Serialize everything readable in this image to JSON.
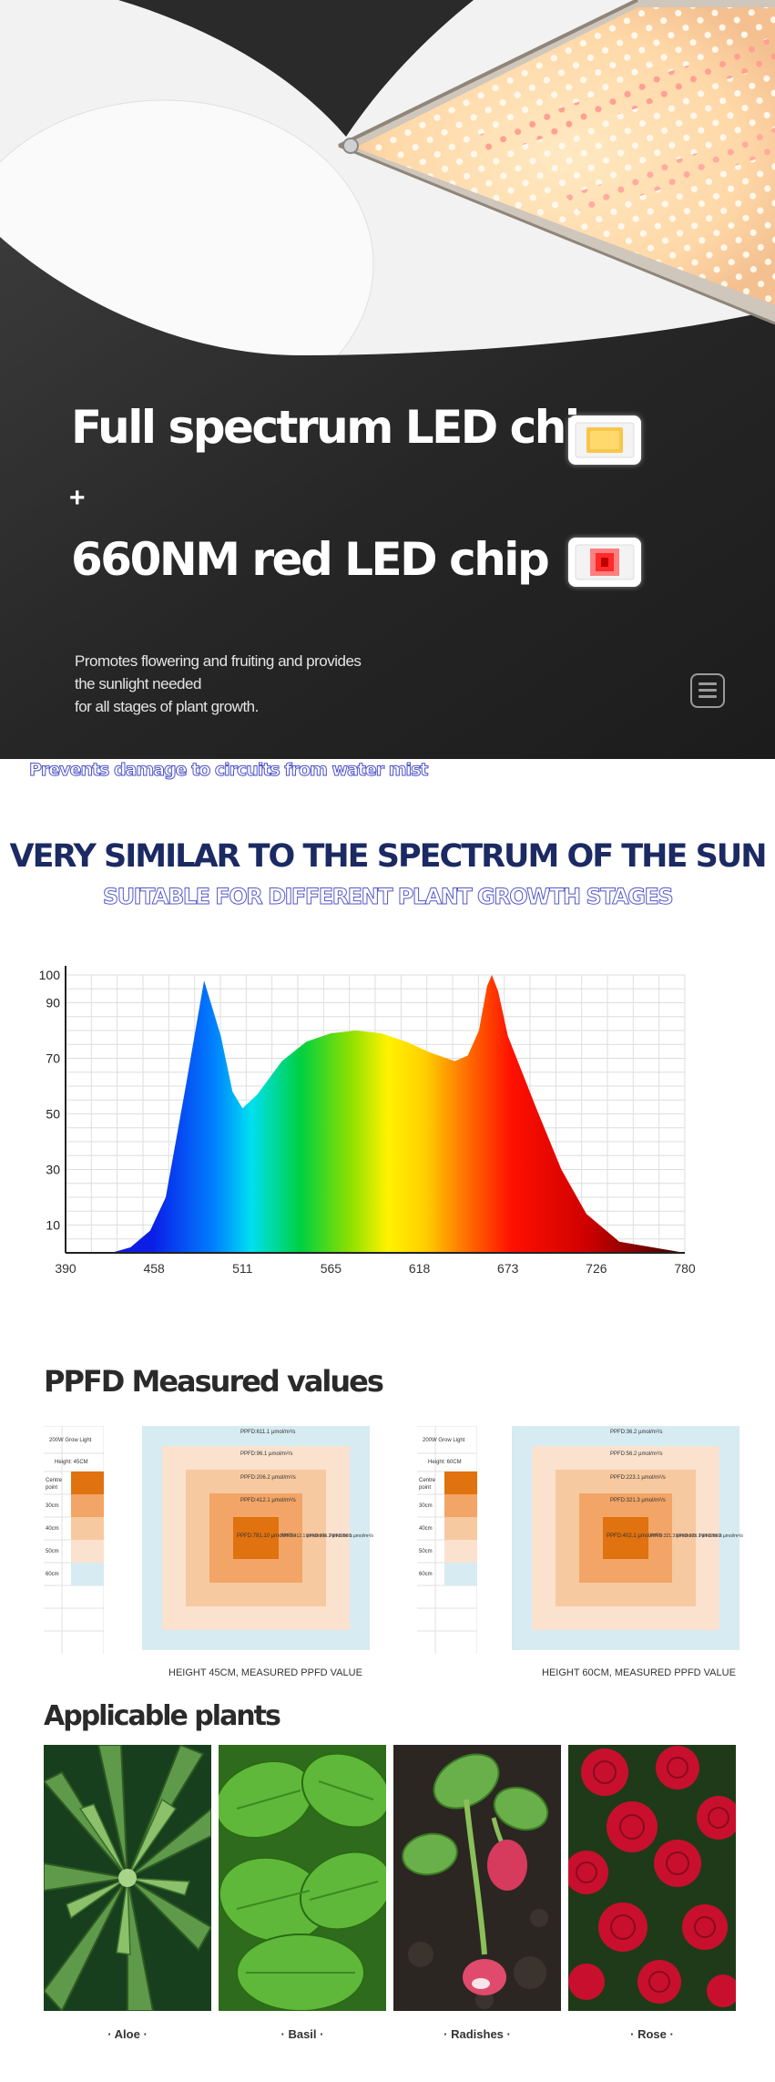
{
  "hero": {
    "title1": "Full spectrum LED chip",
    "plus": "+",
    "title2": "660NM red LED chip",
    "desc": [
      "Promotes flowering and fruiting and provides",
      "the sunlight needed",
      "for all stages of plant growth."
    ],
    "mist_text": "Prevents damage to circuits from water mist"
  },
  "spectrum_section": {
    "heading": "VERY SIMILAR TO THE SPECTRUM OF THE SUN",
    "subheading": "SUITABLE FOR DIFFERENT PLANT GROWTH STAGES"
  },
  "chart_data": {
    "type": "area",
    "title": "",
    "xlabel": "",
    "ylabel": "",
    "x_ticks": [
      "390",
      "458",
      "511",
      "565",
      "618",
      "673",
      "726",
      "780"
    ],
    "y_ticks": [
      "10",
      "30",
      "50",
      "70",
      "90",
      "100"
    ],
    "ylim": [
      0,
      100
    ],
    "grid": true,
    "series": [
      {
        "x": [
          390,
          425,
          440,
          455,
          465,
          477,
          488,
          498,
          505,
          511,
          520,
          535,
          550,
          565,
          580,
          595,
          610,
          625,
          640,
          648,
          655,
          660,
          663,
          667,
          673,
          690,
          705,
          720,
          740,
          780
        ],
        "y": [
          0,
          0,
          2,
          8,
          20,
          60,
          98,
          78,
          58,
          52,
          57,
          69,
          76,
          79,
          80,
          79,
          76,
          72,
          69,
          71,
          80,
          96,
          100,
          94,
          78,
          52,
          30,
          14,
          4,
          0
        ]
      }
    ]
  },
  "ppfd": {
    "title": "PPFD Measured values",
    "left": {
      "caption": "HEIGHT 45CM, MEASURED PPFD VALUE",
      "table": [
        "200W Grow Light",
        "Height:  45CM",
        "Centre point",
        "30cm",
        "40cm",
        "50cm",
        "60cm"
      ],
      "values": [
        "PPFD:611.1 µmol/m²/s",
        "PPFD:96.1 µmol/m²/s",
        "PPFD:206.2 µmol/m²/s",
        "PPFD:412.1 µmol/m²/s",
        "PPFD:781.10 µmol/m²/s"
      ],
      "side": [
        "PPFD:412.1 µmol/m²/s",
        "PPFD:206.2 µmol/m²/s",
        "PPFD:96.1 µmol/m²/s"
      ]
    },
    "right": {
      "caption": "HEIGHT 60CM, MEASURED PPFD VALUE",
      "table": [
        "200W Grow Light",
        "Height:  60CM",
        "Centre point",
        "30cm",
        "40cm",
        "50cm",
        "60cm"
      ],
      "values": [
        "PPFD:36.2 µmol/m²/s",
        "PPFD:56.2 µmol/m²/s",
        "PPFD:223.1 µmol/m²/s",
        "PPFD:321.3 µmol/m²/s",
        "PPFD:402.1 µmol/m²/s"
      ],
      "side": [
        "PPFD:321.3 µmol/m²/s",
        "PPFD:223.1 µmol/m²/s",
        "PPFD:56.2 µmol/m²/s"
      ]
    }
  },
  "plants": {
    "title": "Applicable plants",
    "items": [
      "· Aloe ·",
      "· Basil ·",
      "· Radishes ·",
      "· Rose ·"
    ]
  },
  "colors": {
    "navy": "#1b2a63",
    "outline_blue": "#4b50c8",
    "ppfd_center": "#e0720f",
    "ppfd_bg": "#d6ebf2"
  }
}
